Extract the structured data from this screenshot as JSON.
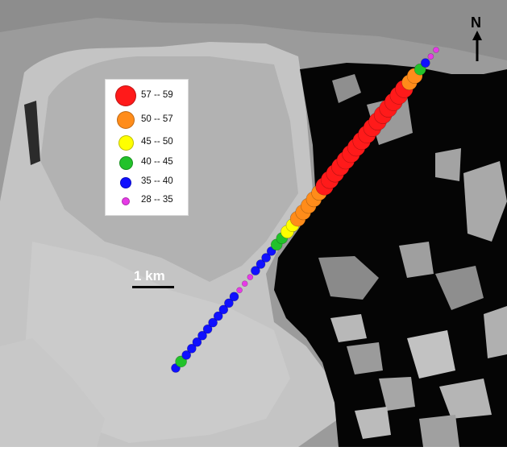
{
  "map": {
    "colors": {
      "ocean": "#050505",
      "ice": "#b9b9b9",
      "land": "#9a9a9a",
      "outline": "#ffffff"
    },
    "legend": [
      {
        "label": "57 -- 59",
        "color": "#ff1a1a"
      },
      {
        "label": "50 -- 57",
        "color": "#ff8c1a"
      },
      {
        "label": "45 -- 50",
        "color": "#ffff00"
      },
      {
        "label": "40 -- 45",
        "color": "#22c22a"
      },
      {
        "label": "35 -- 40",
        "color": "#1010ff"
      },
      {
        "label": "28 -- 35",
        "color": "#e63ae6"
      }
    ],
    "scale_label": "1 km",
    "north_label": "N"
  }
}
